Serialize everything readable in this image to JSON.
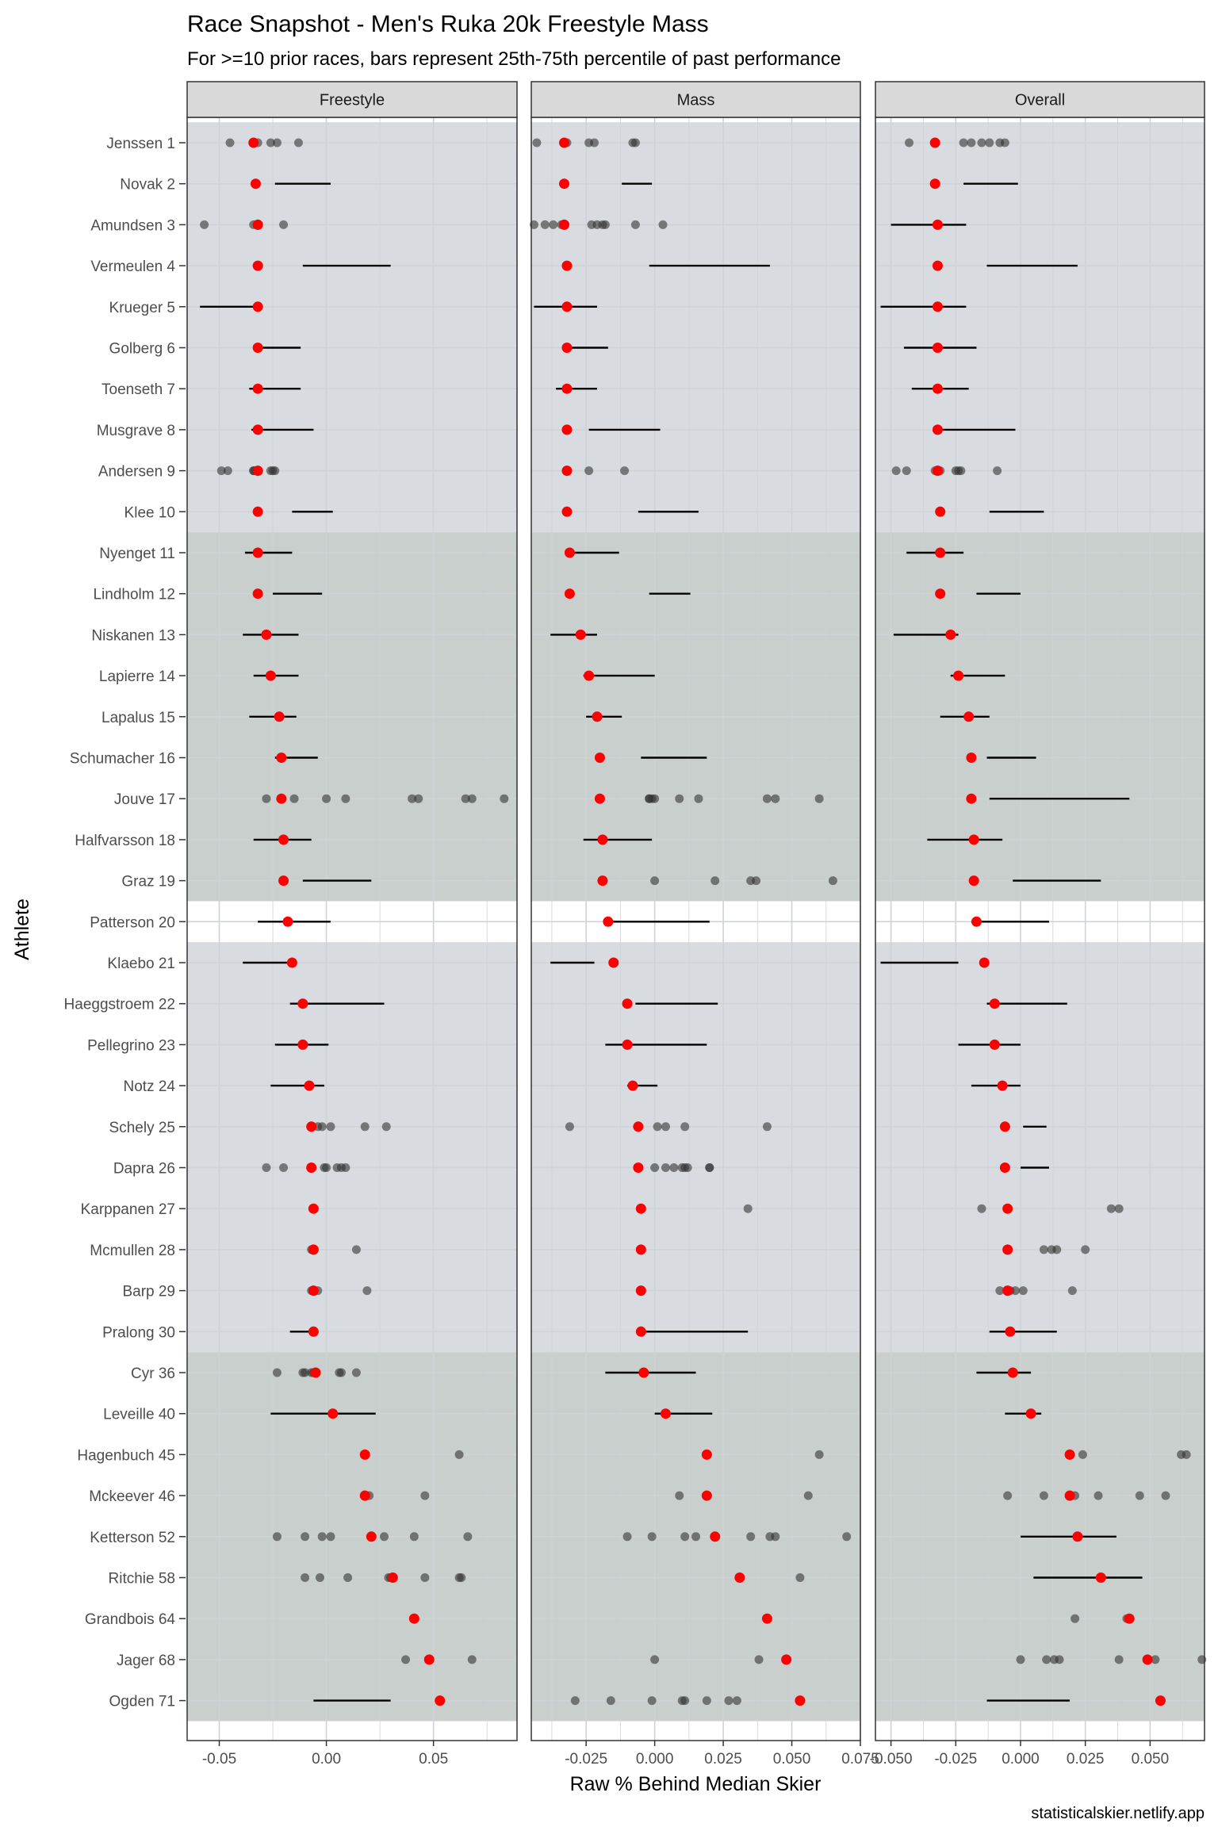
{
  "chart_data": {
    "type": "scatter",
    "title": "Race Snapshot -  Men's Ruka 20k Freestyle Mass",
    "subtitle": "For >=10 prior races, bars represent 25th-75th percentile of past performance",
    "xlabel": "Raw % Behind Median Skier",
    "ylabel": "Athlete",
    "caption": "statisticalskier.netlify.app",
    "athletes": [
      "Jenssen 1",
      "Novak 2",
      "Amundsen 3",
      "Vermeulen 4",
      "Krueger 5",
      "Golberg 6",
      "Toenseth 7",
      "Musgrave 8",
      "Andersen 9",
      "Klee 10",
      "Nyenget 11",
      "Lindholm 12",
      "Niskanen 13",
      "Lapierre 14",
      "Lapalus 15",
      "Schumacher 16",
      "Jouve 17",
      "Halfvarsson 18",
      "Graz 19",
      "Patterson 20",
      "Klaebo 21",
      "Haeggstroem 22",
      "Pellegrino 23",
      "Notz 24",
      "Schely 25",
      "Dapra 26",
      "Karppanen 27",
      "Mcmullen 28",
      "Barp 29",
      "Pralong 30",
      "Cyr 36",
      "Leveille 40",
      "Hagenbuch 45",
      "Mckeever 46",
      "Ketterson 52",
      "Ritchie 58",
      "Grandbois 64",
      "Jager 68",
      "Ogden 71"
    ],
    "bands": [
      {
        "from": 0,
        "to": 9,
        "color": "#d8dbe0"
      },
      {
        "from": 10,
        "to": 18,
        "color": "#c9cfcd"
      },
      {
        "from": 20,
        "to": 29,
        "color": "#d8dbe0"
      },
      {
        "from": 30,
        "to": 38,
        "color": "#c9cfcd"
      }
    ],
    "colors": {
      "current": "#ff0000",
      "past": "#333333",
      "bar": "#000000",
      "panel_bg": "#ffffff",
      "grid": "#cfd2d6",
      "strip_bg": "#d9d9d9",
      "border": "#333333"
    },
    "panels": [
      {
        "name": "Freestyle",
        "xlim": [
          -0.065,
          0.089
        ],
        "ticks": [
          -0.05,
          0,
          0.05
        ],
        "tick_labels": [
          "-0.05",
          "0.00",
          "0.05"
        ],
        "current": [
          -0.034,
          -0.033,
          -0.032,
          -0.032,
          -0.032,
          -0.032,
          -0.032,
          -0.032,
          -0.032,
          -0.032,
          -0.032,
          -0.032,
          -0.028,
          -0.026,
          -0.022,
          -0.021,
          -0.021,
          -0.02,
          -0.02,
          -0.018,
          -0.016,
          -0.011,
          -0.011,
          -0.008,
          -0.007,
          -0.007,
          -0.006,
          -0.006,
          -0.006,
          -0.006,
          -0.005,
          0.003,
          0.018,
          0.018,
          0.021,
          0.031,
          0.041,
          0.048,
          0.053
        ],
        "iqr": [
          null,
          [
            -0.024,
            0.002
          ],
          null,
          [
            -0.011,
            0.03
          ],
          [
            -0.059,
            -0.03
          ],
          [
            -0.033,
            -0.012
          ],
          [
            -0.036,
            -0.012
          ],
          [
            -0.035,
            -0.006
          ],
          null,
          [
            -0.016,
            0.003
          ],
          [
            -0.038,
            -0.016
          ],
          [
            -0.025,
            -0.002
          ],
          [
            -0.039,
            -0.013
          ],
          [
            -0.034,
            -0.013
          ],
          [
            -0.036,
            -0.014
          ],
          [
            -0.024,
            -0.004
          ],
          null,
          [
            -0.034,
            -0.007
          ],
          [
            -0.011,
            0.021
          ],
          [
            -0.032,
            0.002
          ],
          [
            -0.039,
            -0.018
          ],
          [
            -0.017,
            0.027
          ],
          [
            -0.024,
            0.001
          ],
          [
            -0.026,
            -0.001
          ],
          null,
          null,
          null,
          null,
          null,
          [
            -0.017,
            -0.005
          ],
          null,
          [
            -0.026,
            0.023
          ],
          null,
          null,
          null,
          null,
          null,
          null,
          [
            -0.006,
            0.03
          ]
        ],
        "past": [
          [
            -0.045,
            -0.032,
            -0.026,
            -0.023,
            -0.013
          ],
          [],
          [
            -0.057,
            -0.034,
            -0.02
          ],
          [],
          [],
          [],
          [],
          [],
          [
            -0.049,
            -0.046,
            -0.034,
            -0.034,
            -0.033,
            -0.026,
            -0.025,
            -0.024
          ],
          [],
          [],
          [],
          [],
          [],
          [],
          [],
          [
            -0.028,
            -0.021,
            -0.015,
            0.0,
            0.009,
            0.04,
            0.043,
            0.065,
            0.068,
            0.083
          ],
          [],
          [],
          [],
          [],
          [],
          [],
          [],
          [
            -0.007,
            -0.004,
            -0.002,
            0.002,
            0.018,
            0.028
          ],
          [
            -0.028,
            -0.02,
            -0.001,
            0.0,
            0.005,
            0.007,
            0.009
          ],
          [],
          [
            -0.007,
            0.014
          ],
          [
            -0.007,
            -0.004,
            0.019
          ],
          [],
          [
            -0.023,
            -0.011,
            -0.01,
            -0.007,
            -0.006,
            0.006,
            0.007,
            0.014
          ],
          [],
          [
            0.062
          ],
          [
            0.02,
            0.046
          ],
          [
            -0.023,
            -0.01,
            -0.002,
            0.002,
            0.021,
            0.027,
            0.041,
            0.066
          ],
          [
            -0.01,
            -0.003,
            0.01,
            0.029,
            0.03,
            0.046,
            0.062,
            0.063
          ],
          [],
          [
            0.037,
            0.068
          ],
          []
        ]
      },
      {
        "name": "Mass",
        "xlim": [
          -0.045,
          0.075
        ],
        "ticks": [
          -0.025,
          0,
          0.025,
          0.05,
          0.075
        ],
        "tick_labels": [
          "-0.025",
          "0.000",
          "0.025",
          "0.050",
          "0.075"
        ],
        "current": [
          -0.033,
          -0.033,
          -0.033,
          -0.032,
          -0.032,
          -0.032,
          -0.032,
          -0.032,
          -0.032,
          -0.032,
          -0.031,
          -0.031,
          -0.027,
          -0.024,
          -0.021,
          -0.02,
          -0.02,
          -0.019,
          -0.019,
          -0.017,
          -0.015,
          -0.01,
          -0.01,
          -0.008,
          -0.006,
          -0.006,
          -0.005,
          -0.005,
          -0.005,
          -0.005,
          -0.004,
          0.004,
          0.019,
          0.019,
          0.022,
          0.031,
          0.041,
          0.048,
          0.053
        ],
        "iqr": [
          null,
          [
            -0.012,
            -0.001
          ],
          null,
          [
            -0.002,
            0.042
          ],
          [
            -0.044,
            -0.021
          ],
          [
            -0.031,
            -0.017
          ],
          [
            -0.036,
            -0.021
          ],
          [
            -0.024,
            0.002
          ],
          null,
          [
            -0.006,
            0.016
          ],
          [
            -0.031,
            -0.013
          ],
          [
            -0.002,
            0.013
          ],
          [
            -0.038,
            -0.021
          ],
          [
            -0.026,
            0.0
          ],
          [
            -0.025,
            -0.012
          ],
          [
            -0.005,
            0.019
          ],
          null,
          [
            -0.026,
            -0.001
          ],
          null,
          [
            -0.017,
            0.02
          ],
          [
            -0.038,
            -0.022
          ],
          [
            -0.007,
            0.023
          ],
          [
            -0.018,
            0.019
          ],
          [
            -0.01,
            0.001
          ],
          null,
          null,
          null,
          null,
          null,
          [
            -0.005,
            0.034
          ],
          [
            -0.018,
            0.015
          ],
          [
            0.0,
            0.021
          ],
          null,
          null,
          null,
          null,
          null,
          null,
          null
        ],
        "past": [
          [
            -0.043,
            -0.032,
            -0.024,
            -0.022,
            -0.008,
            -0.007
          ],
          [],
          [
            -0.044,
            -0.04,
            -0.037,
            -0.034,
            -0.023,
            -0.021,
            -0.019,
            -0.018,
            -0.007,
            0.003
          ],
          [],
          [],
          [],
          [],
          [],
          [
            -0.032,
            -0.024,
            -0.011
          ],
          [],
          [],
          [],
          [],
          [],
          [],
          [],
          [
            -0.002,
            -0.002,
            -0.001,
            0.0,
            0.009,
            0.016,
            0.041,
            0.044,
            0.06
          ],
          [],
          [
            0.0,
            0.022,
            0.035,
            0.037,
            0.065
          ],
          [],
          [],
          [],
          [],
          [],
          [
            -0.031,
            0.001,
            0.004,
            0.011,
            0.041
          ],
          [
            0.0,
            0.004,
            0.007,
            0.01,
            0.011,
            0.012,
            0.02,
            0.02
          ],
          [
            0.034
          ],
          [],
          [],
          [],
          [],
          [],
          [
            0.06
          ],
          [
            0.009,
            0.056
          ],
          [
            -0.01,
            -0.001,
            0.011,
            0.015,
            0.035,
            0.042,
            0.044,
            0.07
          ],
          [
            0.053
          ],
          [],
          [
            0.0,
            0.038
          ],
          [
            -0.029,
            -0.016,
            -0.001,
            0.01,
            0.011,
            0.019,
            0.027,
            0.03
          ]
        ]
      },
      {
        "name": "Overall",
        "xlim": [
          -0.056,
          0.071
        ],
        "ticks": [
          -0.05,
          -0.025,
          0,
          0.025,
          0.05
        ],
        "tick_labels": [
          "-0.050",
          "-0.025",
          "0.000",
          "0.025",
          "0.050"
        ],
        "current": [
          -0.033,
          -0.033,
          -0.032,
          -0.032,
          -0.032,
          -0.032,
          -0.032,
          -0.032,
          -0.032,
          -0.031,
          -0.031,
          -0.031,
          -0.027,
          -0.024,
          -0.02,
          -0.019,
          -0.019,
          -0.018,
          -0.018,
          -0.017,
          -0.014,
          -0.01,
          -0.01,
          -0.007,
          -0.006,
          -0.006,
          -0.005,
          -0.005,
          -0.005,
          -0.004,
          -0.003,
          0.004,
          0.019,
          0.019,
          0.022,
          0.031,
          0.042,
          0.049,
          0.054
        ],
        "iqr": [
          null,
          [
            -0.022,
            -0.001
          ],
          [
            -0.05,
            -0.021
          ],
          [
            -0.013,
            0.022
          ],
          [
            -0.054,
            -0.021
          ],
          [
            -0.045,
            -0.017
          ],
          [
            -0.042,
            -0.02
          ],
          [
            -0.031,
            -0.002
          ],
          null,
          [
            -0.012,
            0.009
          ],
          [
            -0.044,
            -0.022
          ],
          [
            -0.017,
            0.0
          ],
          [
            -0.049,
            -0.024
          ],
          [
            -0.027,
            -0.006
          ],
          [
            -0.031,
            -0.012
          ],
          [
            -0.013,
            0.006
          ],
          [
            -0.012,
            0.042
          ],
          [
            -0.036,
            -0.007
          ],
          [
            -0.003,
            0.031
          ],
          [
            -0.019,
            0.011
          ],
          [
            -0.054,
            -0.024
          ],
          [
            -0.013,
            0.018
          ],
          [
            -0.024,
            0.0
          ],
          [
            -0.019,
            0.0
          ],
          [
            0.001,
            0.01
          ],
          [
            0.0,
            0.011
          ],
          null,
          null,
          null,
          [
            -0.012,
            0.014
          ],
          [
            -0.017,
            0.004
          ],
          [
            -0.006,
            0.008
          ],
          null,
          null,
          [
            0.0,
            0.037
          ],
          [
            0.005,
            0.047
          ],
          null,
          null,
          [
            -0.013,
            0.019
          ]
        ],
        "past": [
          [
            -0.043,
            -0.022,
            -0.019,
            -0.015,
            -0.012,
            -0.008,
            -0.006
          ],
          [],
          [],
          [],
          [],
          [],
          [],
          [],
          [
            -0.048,
            -0.044,
            -0.033,
            -0.031,
            -0.025,
            -0.024,
            -0.023,
            -0.009
          ],
          [],
          [],
          [],
          [],
          [],
          [],
          [],
          [],
          [],
          [],
          [],
          [],
          [],
          [],
          [],
          [],
          [],
          [
            -0.015,
            0.035,
            0.038
          ],
          [
            -0.005,
            0.009,
            0.012,
            0.014,
            0.025
          ],
          [
            -0.008,
            -0.004,
            -0.002,
            0.001,
            0.02
          ],
          [],
          [],
          [],
          [
            0.024,
            0.062,
            0.064
          ],
          [
            -0.005,
            0.009,
            0.021,
            0.03,
            0.046,
            0.056
          ],
          [],
          [],
          [
            0.021,
            0.041,
            0.042
          ],
          [
            0.0,
            0.01,
            0.013,
            0.015,
            0.038,
            0.052,
            0.07
          ],
          []
        ]
      }
    ]
  }
}
